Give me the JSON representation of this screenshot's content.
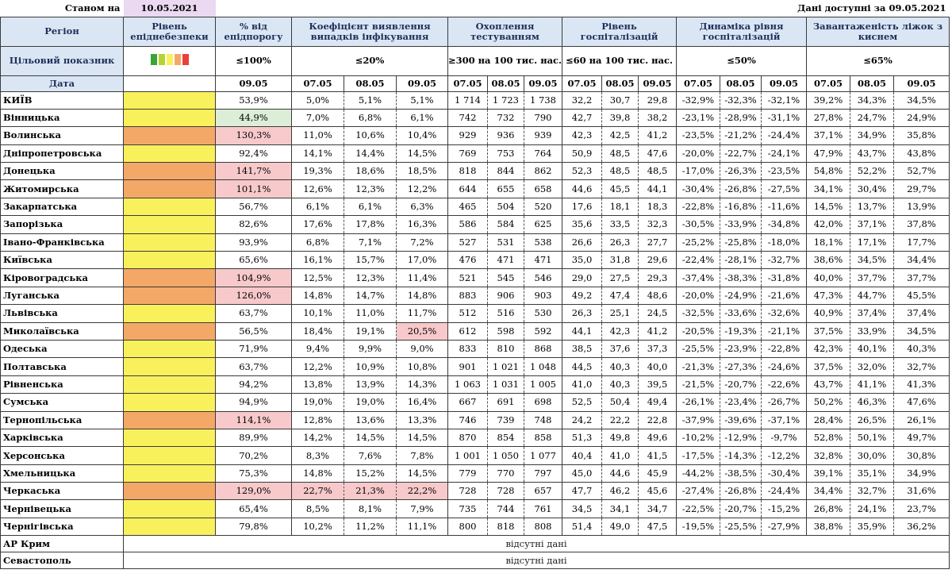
{
  "header": {
    "as_of_label": "Станом на",
    "as_of_date": "10.05.2021",
    "data_available_label": "Дані доступні за",
    "data_available_date": "09.05.2021"
  },
  "columns": {
    "region": "Регіон",
    "level": "Рівень епіднебезпеки",
    "pct_threshold": "% від епідпорогу",
    "detection": "Коефіцієнт виявлення випадків інфікування",
    "testing": "Охоплення тестуванням",
    "hosp": "Рівень госпіталізацій",
    "hosp_dyn": "Динаміка рівня госпіталізацій",
    "oxygen": "Завантаженість ліжок з киснем"
  },
  "target": {
    "label": "Цільовий показник",
    "pct_threshold": "≤100%",
    "detection": "≤20%",
    "testing": "≥300 на 100 тис. нас.",
    "hosp": "≤60 на 100 тис. нас.",
    "hosp_dyn": "≤50%",
    "oxygen": "≤65%",
    "legend_colors": [
      "#3aa537",
      "#b5d334",
      "#f9f15c",
      "#f4a868",
      "#e8413c"
    ]
  },
  "dates": {
    "label": "Дата",
    "pct_threshold": "09.05",
    "group": [
      "07.05",
      "08.05",
      "09.05"
    ]
  },
  "rows": [
    {
      "region": "КИЇВ",
      "level": "yellow",
      "pct": "53,9%",
      "det": [
        "5,0%",
        "5,1%",
        "5,1%"
      ],
      "test": [
        "1 714",
        "1 723",
        "1 738"
      ],
      "hosp": [
        "32,2",
        "30,7",
        "29,8"
      ],
      "dyn": [
        "-32,9%",
        "-32,3%",
        "-32,1%"
      ],
      "oxy": [
        "39,2%",
        "34,3%",
        "34,5%"
      ]
    },
    {
      "region": "Вінницька",
      "level": "yellow",
      "pct": "44,9%",
      "pct_hl": "green",
      "det": [
        "7,0%",
        "6,8%",
        "6,1%"
      ],
      "test": [
        "742",
        "732",
        "790"
      ],
      "hosp": [
        "42,7",
        "39,8",
        "38,2"
      ],
      "dyn": [
        "-23,1%",
        "-28,9%",
        "-31,1%"
      ],
      "oxy": [
        "27,8%",
        "24,7%",
        "24,9%"
      ]
    },
    {
      "region": "Волинська",
      "level": "orange",
      "pct": "130,3%",
      "pct_hl": "red",
      "det": [
        "11,0%",
        "10,6%",
        "10,4%"
      ],
      "test": [
        "929",
        "936",
        "939"
      ],
      "hosp": [
        "42,3",
        "42,5",
        "41,2"
      ],
      "dyn": [
        "-23,5%",
        "-21,2%",
        "-24,4%"
      ],
      "oxy": [
        "37,1%",
        "34,9%",
        "35,8%"
      ]
    },
    {
      "region": "Дніпропетровська",
      "level": "yellow",
      "pct": "92,4%",
      "det": [
        "14,1%",
        "14,4%",
        "14,5%"
      ],
      "test": [
        "769",
        "753",
        "764"
      ],
      "hosp": [
        "50,9",
        "48,5",
        "47,6"
      ],
      "dyn": [
        "-20,0%",
        "-22,7%",
        "-24,1%"
      ],
      "oxy": [
        "47,9%",
        "43,7%",
        "43,8%"
      ]
    },
    {
      "region": "Донецька",
      "level": "orange",
      "pct": "141,7%",
      "pct_hl": "red",
      "det": [
        "19,3%",
        "18,6%",
        "18,5%"
      ],
      "test": [
        "818",
        "844",
        "862"
      ],
      "hosp": [
        "52,3",
        "48,5",
        "48,5"
      ],
      "dyn": [
        "-17,0%",
        "-26,3%",
        "-23,5%"
      ],
      "oxy": [
        "54,8%",
        "52,2%",
        "52,7%"
      ]
    },
    {
      "region": "Житомирська",
      "level": "orange",
      "pct": "101,1%",
      "pct_hl": "red",
      "det": [
        "12,6%",
        "12,3%",
        "12,2%"
      ],
      "test": [
        "644",
        "655",
        "658"
      ],
      "hosp": [
        "44,6",
        "45,5",
        "44,1"
      ],
      "dyn": [
        "-30,4%",
        "-26,8%",
        "-27,5%"
      ],
      "oxy": [
        "34,1%",
        "30,4%",
        "29,7%"
      ]
    },
    {
      "region": "Закарпатська",
      "level": "yellow",
      "pct": "56,7%",
      "det": [
        "6,1%",
        "6,1%",
        "6,3%"
      ],
      "test": [
        "465",
        "504",
        "520"
      ],
      "hosp": [
        "17,6",
        "18,1",
        "18,3"
      ],
      "dyn": [
        "-22,8%",
        "-16,8%",
        "-11,6%"
      ],
      "oxy": [
        "14,5%",
        "13,7%",
        "13,9%"
      ]
    },
    {
      "region": "Запорізька",
      "level": "yellow",
      "pct": "82,6%",
      "det": [
        "17,6%",
        "17,8%",
        "16,3%"
      ],
      "test": [
        "586",
        "584",
        "625"
      ],
      "hosp": [
        "35,6",
        "33,5",
        "32,3"
      ],
      "dyn": [
        "-30,5%",
        "-33,9%",
        "-34,8%"
      ],
      "oxy": [
        "42,0%",
        "37,1%",
        "37,8%"
      ]
    },
    {
      "region": "Івано-Франківська",
      "level": "yellow",
      "pct": "93,9%",
      "det": [
        "6,8%",
        "7,1%",
        "7,2%"
      ],
      "test": [
        "527",
        "531",
        "538"
      ],
      "hosp": [
        "26,6",
        "26,3",
        "27,7"
      ],
      "dyn": [
        "-25,2%",
        "-25,8%",
        "-18,0%"
      ],
      "oxy": [
        "18,1%",
        "17,1%",
        "17,7%"
      ]
    },
    {
      "region": "Київська",
      "level": "yellow",
      "pct": "65,6%",
      "det": [
        "16,1%",
        "15,7%",
        "17,0%"
      ],
      "test": [
        "476",
        "471",
        "471"
      ],
      "hosp": [
        "35,0",
        "31,8",
        "29,6"
      ],
      "dyn": [
        "-22,4%",
        "-28,1%",
        "-32,7%"
      ],
      "oxy": [
        "38,6%",
        "34,5%",
        "34,4%"
      ]
    },
    {
      "region": "Кіровоградська",
      "level": "orange",
      "pct": "104,9%",
      "pct_hl": "red",
      "det": [
        "12,5%",
        "12,3%",
        "11,4%"
      ],
      "test": [
        "521",
        "545",
        "546"
      ],
      "hosp": [
        "29,0",
        "27,5",
        "29,3"
      ],
      "dyn": [
        "-37,4%",
        "-38,3%",
        "-31,8%"
      ],
      "oxy": [
        "40,0%",
        "37,7%",
        "37,7%"
      ]
    },
    {
      "region": "Луганська",
      "level": "orange",
      "pct": "126,0%",
      "pct_hl": "red",
      "det": [
        "14,8%",
        "14,7%",
        "14,8%"
      ],
      "test": [
        "883",
        "906",
        "903"
      ],
      "hosp": [
        "49,2",
        "47,4",
        "48,6"
      ],
      "dyn": [
        "-20,0%",
        "-24,9%",
        "-21,6%"
      ],
      "oxy": [
        "47,3%",
        "44,7%",
        "45,5%"
      ]
    },
    {
      "region": "Львівська",
      "level": "yellow",
      "pct": "63,7%",
      "det": [
        "10,1%",
        "11,0%",
        "11,7%"
      ],
      "test": [
        "512",
        "516",
        "530"
      ],
      "hosp": [
        "26,3",
        "25,1",
        "24,5"
      ],
      "dyn": [
        "-32,5%",
        "-33,6%",
        "-32,6%"
      ],
      "oxy": [
        "40,9%",
        "37,4%",
        "37,4%"
      ]
    },
    {
      "region": "Миколаївська",
      "level": "orange",
      "pct": "56,5%",
      "det": [
        "18,4%",
        "19,1%",
        "20,5%"
      ],
      "det_hl": [
        false,
        false,
        true
      ],
      "test": [
        "612",
        "598",
        "592"
      ],
      "hosp": [
        "44,1",
        "42,3",
        "41,2"
      ],
      "dyn": [
        "-20,5%",
        "-19,3%",
        "-21,1%"
      ],
      "oxy": [
        "37,5%",
        "33,9%",
        "34,5%"
      ]
    },
    {
      "region": "Одеська",
      "level": "yellow",
      "pct": "71,9%",
      "det": [
        "9,4%",
        "9,9%",
        "9,0%"
      ],
      "test": [
        "833",
        "810",
        "868"
      ],
      "hosp": [
        "38,5",
        "37,6",
        "37,3"
      ],
      "dyn": [
        "-25,5%",
        "-23,9%",
        "-22,8%"
      ],
      "oxy": [
        "42,3%",
        "40,1%",
        "40,3%"
      ]
    },
    {
      "region": "Полтавська",
      "level": "yellow",
      "pct": "63,7%",
      "det": [
        "12,2%",
        "10,9%",
        "10,8%"
      ],
      "test": [
        "901",
        "1 021",
        "1 048"
      ],
      "hosp": [
        "44,5",
        "40,3",
        "40,0"
      ],
      "dyn": [
        "-21,3%",
        "-27,3%",
        "-24,6%"
      ],
      "oxy": [
        "37,5%",
        "32,0%",
        "32,7%"
      ]
    },
    {
      "region": "Рівненська",
      "level": "yellow",
      "pct": "94,2%",
      "det": [
        "13,8%",
        "13,9%",
        "14,3%"
      ],
      "test": [
        "1 063",
        "1 031",
        "1 005"
      ],
      "hosp": [
        "41,0",
        "40,3",
        "39,5"
      ],
      "dyn": [
        "-21,5%",
        "-20,7%",
        "-22,6%"
      ],
      "oxy": [
        "43,7%",
        "41,1%",
        "41,3%"
      ]
    },
    {
      "region": "Сумська",
      "level": "yellow",
      "pct": "94,9%",
      "det": [
        "19,0%",
        "19,0%",
        "16,4%"
      ],
      "test": [
        "667",
        "691",
        "698"
      ],
      "hosp": [
        "52,5",
        "50,4",
        "49,4"
      ],
      "dyn": [
        "-26,1%",
        "-23,4%",
        "-26,7%"
      ],
      "oxy": [
        "50,2%",
        "46,3%",
        "47,6%"
      ]
    },
    {
      "region": "Тернопільська",
      "level": "orange",
      "pct": "114,1%",
      "pct_hl": "red",
      "det": [
        "12,8%",
        "13,6%",
        "13,3%"
      ],
      "test": [
        "746",
        "739",
        "748"
      ],
      "hosp": [
        "24,2",
        "22,2",
        "22,8"
      ],
      "dyn": [
        "-37,9%",
        "-39,6%",
        "-37,1%"
      ],
      "oxy": [
        "28,4%",
        "26,5%",
        "26,1%"
      ]
    },
    {
      "region": "Харківська",
      "level": "yellow",
      "pct": "89,9%",
      "det": [
        "14,2%",
        "14,5%",
        "14,5%"
      ],
      "test": [
        "870",
        "854",
        "858"
      ],
      "hosp": [
        "51,3",
        "49,8",
        "49,6"
      ],
      "dyn": [
        "-10,2%",
        "-12,9%",
        "-9,7%"
      ],
      "oxy": [
        "52,8%",
        "50,1%",
        "49,7%"
      ]
    },
    {
      "region": "Херсонська",
      "level": "yellow",
      "pct": "70,2%",
      "det": [
        "8,3%",
        "7,6%",
        "7,8%"
      ],
      "test": [
        "1 001",
        "1 050",
        "1 077"
      ],
      "hosp": [
        "40,4",
        "41,0",
        "41,5"
      ],
      "dyn": [
        "-17,5%",
        "-14,3%",
        "-12,2%"
      ],
      "oxy": [
        "32,8%",
        "30,0%",
        "30,8%"
      ]
    },
    {
      "region": "Хмельницька",
      "level": "yellow",
      "pct": "75,3%",
      "det": [
        "14,8%",
        "15,2%",
        "14,5%"
      ],
      "test": [
        "779",
        "770",
        "797"
      ],
      "hosp": [
        "45,0",
        "44,6",
        "45,9"
      ],
      "dyn": [
        "-44,2%",
        "-38,5%",
        "-30,4%"
      ],
      "oxy": [
        "39,1%",
        "35,1%",
        "34,9%"
      ]
    },
    {
      "region": "Черкаська",
      "level": "orange",
      "pct": "129,0%",
      "pct_hl": "red",
      "det": [
        "22,7%",
        "21,3%",
        "22,2%"
      ],
      "det_hl": [
        true,
        true,
        true
      ],
      "test": [
        "728",
        "728",
        "657"
      ],
      "hosp": [
        "47,7",
        "46,2",
        "45,6"
      ],
      "dyn": [
        "-27,4%",
        "-26,8%",
        "-24,4%"
      ],
      "oxy": [
        "34,4%",
        "32,7%",
        "31,6%"
      ]
    },
    {
      "region": "Чернівецька",
      "level": "yellow",
      "pct": "65,4%",
      "det": [
        "8,5%",
        "8,1%",
        "7,9%"
      ],
      "test": [
        "735",
        "744",
        "761"
      ],
      "hosp": [
        "34,5",
        "34,1",
        "34,7"
      ],
      "dyn": [
        "-22,5%",
        "-20,7%",
        "-15,2%"
      ],
      "oxy": [
        "26,8%",
        "24,1%",
        "23,7%"
      ]
    },
    {
      "region": "Чернігівська",
      "level": "yellow",
      "pct": "79,8%",
      "det": [
        "10,2%",
        "11,2%",
        "11,1%"
      ],
      "test": [
        "800",
        "818",
        "808"
      ],
      "hosp": [
        "51,4",
        "49,0",
        "47,5"
      ],
      "dyn": [
        "-19,5%",
        "-25,5%",
        "-27,9%"
      ],
      "oxy": [
        "38,8%",
        "35,9%",
        "36,2%"
      ]
    }
  ],
  "missing": [
    {
      "region": "АР Крим",
      "text": "відсутні дані"
    },
    {
      "region": "Севастополь",
      "text": "відсутні дані"
    }
  ]
}
